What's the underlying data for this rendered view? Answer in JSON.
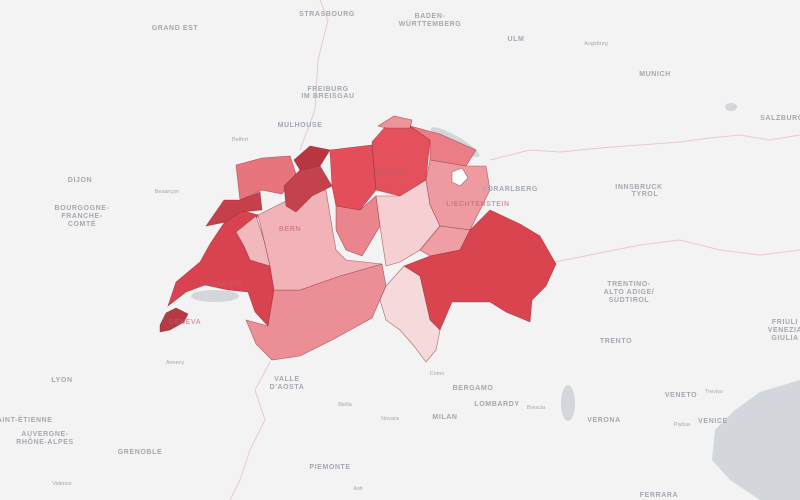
{
  "map": {
    "colors": {
      "background": "#f3f3f3",
      "water": "#d3d6da",
      "border": "#ebc8cc",
      "region_stroke": "#8e2e36"
    },
    "regions": [
      {
        "id": "geneva",
        "fill": "#b53a45"
      },
      {
        "id": "vaud",
        "fill": "#d9434f"
      },
      {
        "id": "valais",
        "fill": "#ec8e96"
      },
      {
        "id": "fribourg",
        "fill": "#f2b9bd"
      },
      {
        "id": "bern",
        "fill": "#f2b3b8"
      },
      {
        "id": "neuchatel",
        "fill": "#c5404b"
      },
      {
        "id": "jura",
        "fill": "#e8747d"
      },
      {
        "id": "solothurn",
        "fill": "#c4424d"
      },
      {
        "id": "basel",
        "fill": "#b8363f"
      },
      {
        "id": "aargau",
        "fill": "#e34e5a"
      },
      {
        "id": "zurich",
        "fill": "#e4505b"
      },
      {
        "id": "schaffhausen",
        "fill": "#ec949b"
      },
      {
        "id": "thurgau",
        "fill": "#ea7d86"
      },
      {
        "id": "st-gallen",
        "fill": "#ee9aa1"
      },
      {
        "id": "lucerne",
        "fill": "#eb858d"
      },
      {
        "id": "central",
        "fill": "#f5cfd2"
      },
      {
        "id": "glarus",
        "fill": "#ef9ea5"
      },
      {
        "id": "graubunden",
        "fill": "#d9444f"
      },
      {
        "id": "ticino",
        "fill": "#f6d9db"
      },
      {
        "id": "appenzell",
        "fill": "#ffffff"
      }
    ],
    "labels": [
      {
        "text": "STRASBOURG",
        "small": false
      },
      {
        "text": "GRAND EST",
        "small": false
      },
      {
        "text": "BADEN-",
        "small": false
      },
      {
        "text": "WÜRTTEMBERG",
        "small": false
      },
      {
        "text": "ULM",
        "small": false
      },
      {
        "text": "Augsburg",
        "small": true
      },
      {
        "text": "MUNICH",
        "small": false
      },
      {
        "text": "SALZBURG",
        "small": false
      },
      {
        "text": "FREIBURG",
        "small": false
      },
      {
        "text": "IM BREISGAU",
        "small": false
      },
      {
        "text": "MULHOUSE",
        "small": false
      },
      {
        "text": "Belfort",
        "small": true
      },
      {
        "text": "DIJON",
        "small": false
      },
      {
        "text": "Besançon",
        "small": true
      },
      {
        "text": "BOURGOGNE-",
        "small": false
      },
      {
        "text": "FRANCHE-",
        "small": false
      },
      {
        "text": "COMTÉ",
        "small": false
      },
      {
        "text": "ZURICH",
        "small": false
      },
      {
        "text": "VORARLBERG",
        "small": false
      },
      {
        "text": "LIECHTENSTEIN",
        "small": false
      },
      {
        "text": "INNSBRUCK",
        "small": false
      },
      {
        "text": "TYROL",
        "small": false
      },
      {
        "text": "BERN",
        "small": false
      },
      {
        "text": "LAUSANNE",
        "small": false
      },
      {
        "text": "GENEVA",
        "small": false
      },
      {
        "text": "Annecy",
        "small": true
      },
      {
        "text": "LYON",
        "small": false
      },
      {
        "text": "VALLE",
        "small": false
      },
      {
        "text": "D'AOSTA",
        "small": false
      },
      {
        "text": "SAINT-ÉTIENNE",
        "small": false
      },
      {
        "text": "AUVERGNE-",
        "small": false
      },
      {
        "text": "RHÔNE-ALPES",
        "small": false
      },
      {
        "text": "GRENOBLE",
        "small": false
      },
      {
        "text": "Valence",
        "small": true
      },
      {
        "text": "Biella",
        "small": true
      },
      {
        "text": "Novara",
        "small": true
      },
      {
        "text": "PIEMONTE",
        "small": false
      },
      {
        "text": "Asti",
        "small": true
      },
      {
        "text": "Como",
        "small": true
      },
      {
        "text": "MILAN",
        "small": false
      },
      {
        "text": "BERGAMO",
        "small": false
      },
      {
        "text": "LOMBARDY",
        "small": false
      },
      {
        "text": "Brescia",
        "small": true
      },
      {
        "text": "VERONA",
        "small": false
      },
      {
        "text": "VENETO",
        "small": false
      },
      {
        "text": "Treviso",
        "small": true
      },
      {
        "text": "Padua",
        "small": true
      },
      {
        "text": "VENICE",
        "small": false
      },
      {
        "text": "TRENTINO-",
        "small": false
      },
      {
        "text": "ALTO ADIGE/",
        "small": false
      },
      {
        "text": "SÜDTIROL",
        "small": false
      },
      {
        "text": "TRENTO",
        "small": false
      },
      {
        "text": "FRIULI",
        "small": false
      },
      {
        "text": "VENEZIA",
        "small": false
      },
      {
        "text": "GIULIA",
        "small": false
      },
      {
        "text": "FERRARA",
        "small": false
      }
    ]
  }
}
